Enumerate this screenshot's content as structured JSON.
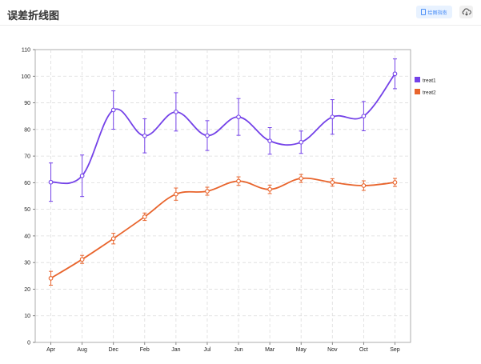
{
  "header": {
    "title": "误差折线图",
    "guide_label": "绘图指南",
    "guide_icon": "document-icon",
    "download_icon": "cloud-download-icon"
  },
  "chart_data": {
    "type": "line",
    "categories": [
      "Apr",
      "Aug",
      "Dec",
      "Feb",
      "Jan",
      "Jul",
      "Jun",
      "Mar",
      "May",
      "Nov",
      "Oct",
      "Sep"
    ],
    "ylim": [
      0,
      110
    ],
    "yticks": [
      0,
      10,
      20,
      30,
      40,
      50,
      60,
      70,
      80,
      90,
      100,
      110
    ],
    "grid": true,
    "legend_position": "right",
    "series": [
      {
        "name": "treat1",
        "color": "#7442e8",
        "values": [
          60.2,
          62.6,
          87.3,
          77.6,
          86.6,
          77.7,
          84.7,
          75.7,
          75.2,
          84.7,
          85.0,
          100.9
        ],
        "errors": [
          7.2,
          7.8,
          7.2,
          6.4,
          7.2,
          5.6,
          6.9,
          5.0,
          4.2,
          6.5,
          5.5,
          5.6
        ]
      },
      {
        "name": "treat2",
        "color": "#e8642c",
        "values": [
          24.1,
          31.2,
          39.0,
          47.2,
          55.7,
          56.8,
          60.6,
          57.5,
          61.6,
          60.1,
          58.9,
          60.1
        ],
        "errors": [
          2.6,
          1.5,
          2.0,
          1.4,
          2.3,
          1.5,
          1.6,
          1.6,
          1.5,
          1.4,
          1.8,
          1.5
        ]
      }
    ]
  }
}
